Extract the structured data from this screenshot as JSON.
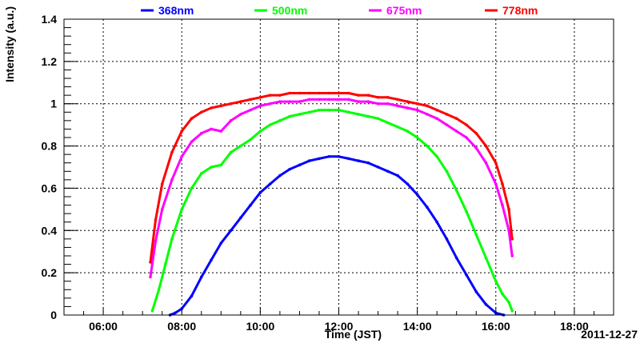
{
  "chart_data": {
    "type": "scatter",
    "title": "",
    "xlabel": "Time (JST)",
    "ylabel": "Intensity (a.u.)",
    "date_label": "2011-12-27",
    "xlim": [
      "05:00",
      "19:00"
    ],
    "ylim": [
      0,
      1.4
    ],
    "x_ticks": [
      "06:00",
      "08:00",
      "10:00",
      "12:00",
      "14:00",
      "16:00",
      "18:00"
    ],
    "y_ticks": [
      "0",
      "0.2",
      "0.4",
      "0.6",
      "0.8",
      "1",
      "1.2",
      "1.4"
    ],
    "grid": true,
    "legend_position": "top",
    "series": [
      {
        "name": "368nm",
        "color": "#0000ff",
        "x": [
          "07:42",
          "07:50",
          "08:00",
          "08:15",
          "08:30",
          "08:45",
          "09:00",
          "09:15",
          "09:30",
          "09:45",
          "10:00",
          "10:15",
          "10:30",
          "10:45",
          "11:00",
          "11:15",
          "11:30",
          "11:45",
          "12:00",
          "12:15",
          "12:30",
          "12:45",
          "13:00",
          "13:15",
          "13:30",
          "13:45",
          "14:00",
          "14:15",
          "14:30",
          "14:45",
          "15:00",
          "15:15",
          "15:30",
          "15:45",
          "16:00",
          "16:12"
        ],
        "values": [
          0.0,
          0.01,
          0.03,
          0.09,
          0.18,
          0.26,
          0.34,
          0.4,
          0.46,
          0.52,
          0.58,
          0.62,
          0.66,
          0.69,
          0.71,
          0.73,
          0.74,
          0.75,
          0.75,
          0.74,
          0.73,
          0.72,
          0.7,
          0.68,
          0.66,
          0.62,
          0.57,
          0.51,
          0.44,
          0.36,
          0.27,
          0.19,
          0.11,
          0.05,
          0.01,
          0.0
        ]
      },
      {
        "name": "500nm",
        "color": "#00ff00",
        "x": [
          "07:15",
          "07:25",
          "07:35",
          "07:45",
          "08:00",
          "08:15",
          "08:30",
          "08:45",
          "09:00",
          "09:15",
          "09:30",
          "09:45",
          "10:00",
          "10:15",
          "10:30",
          "10:45",
          "11:00",
          "11:15",
          "11:30",
          "11:45",
          "12:00",
          "12:15",
          "12:30",
          "12:45",
          "13:00",
          "13:15",
          "13:30",
          "13:45",
          "14:00",
          "14:15",
          "14:30",
          "14:45",
          "15:00",
          "15:15",
          "15:30",
          "15:45",
          "16:00",
          "16:10",
          "16:20",
          "16:25"
        ],
        "values": [
          0.02,
          0.12,
          0.24,
          0.36,
          0.5,
          0.6,
          0.67,
          0.7,
          0.71,
          0.77,
          0.8,
          0.83,
          0.87,
          0.9,
          0.92,
          0.94,
          0.95,
          0.96,
          0.97,
          0.97,
          0.97,
          0.96,
          0.95,
          0.94,
          0.93,
          0.91,
          0.89,
          0.87,
          0.84,
          0.8,
          0.75,
          0.68,
          0.59,
          0.49,
          0.38,
          0.27,
          0.16,
          0.1,
          0.06,
          0.02
        ]
      },
      {
        "name": "675nm",
        "color": "#ff00ff",
        "x": [
          "07:12",
          "07:20",
          "07:30",
          "07:45",
          "08:00",
          "08:15",
          "08:30",
          "08:45",
          "09:00",
          "09:15",
          "09:30",
          "09:45",
          "10:00",
          "10:15",
          "10:30",
          "10:45",
          "11:00",
          "11:15",
          "11:30",
          "11:45",
          "12:00",
          "12:15",
          "12:30",
          "12:45",
          "13:00",
          "13:15",
          "13:30",
          "13:45",
          "14:00",
          "14:15",
          "14:30",
          "14:45",
          "15:00",
          "15:15",
          "15:30",
          "15:45",
          "16:00",
          "16:10",
          "16:20",
          "16:25"
        ],
        "values": [
          0.18,
          0.35,
          0.5,
          0.64,
          0.75,
          0.82,
          0.86,
          0.88,
          0.87,
          0.92,
          0.95,
          0.97,
          0.99,
          1.0,
          1.01,
          1.01,
          1.01,
          1.02,
          1.02,
          1.02,
          1.02,
          1.02,
          1.01,
          1.01,
          1.0,
          1.0,
          0.99,
          0.98,
          0.97,
          0.95,
          0.93,
          0.9,
          0.87,
          0.84,
          0.79,
          0.72,
          0.62,
          0.52,
          0.4,
          0.28
        ]
      },
      {
        "name": "778nm",
        "color": "#ff0000",
        "x": [
          "07:12",
          "07:20",
          "07:30",
          "07:45",
          "08:00",
          "08:15",
          "08:30",
          "08:45",
          "09:00",
          "09:15",
          "09:30",
          "09:45",
          "10:00",
          "10:15",
          "10:30",
          "10:45",
          "11:00",
          "11:15",
          "11:30",
          "11:45",
          "12:00",
          "12:15",
          "12:30",
          "12:45",
          "13:00",
          "13:15",
          "13:30",
          "13:45",
          "14:00",
          "14:15",
          "14:30",
          "14:45",
          "15:00",
          "15:15",
          "15:30",
          "15:45",
          "16:00",
          "16:10",
          "16:20",
          "16:25"
        ],
        "values": [
          0.25,
          0.45,
          0.62,
          0.77,
          0.87,
          0.93,
          0.96,
          0.98,
          0.99,
          1.0,
          1.01,
          1.02,
          1.03,
          1.04,
          1.04,
          1.05,
          1.05,
          1.05,
          1.05,
          1.05,
          1.05,
          1.05,
          1.04,
          1.04,
          1.03,
          1.03,
          1.02,
          1.01,
          1.0,
          0.99,
          0.97,
          0.95,
          0.93,
          0.9,
          0.86,
          0.8,
          0.72,
          0.62,
          0.5,
          0.36
        ]
      }
    ]
  }
}
